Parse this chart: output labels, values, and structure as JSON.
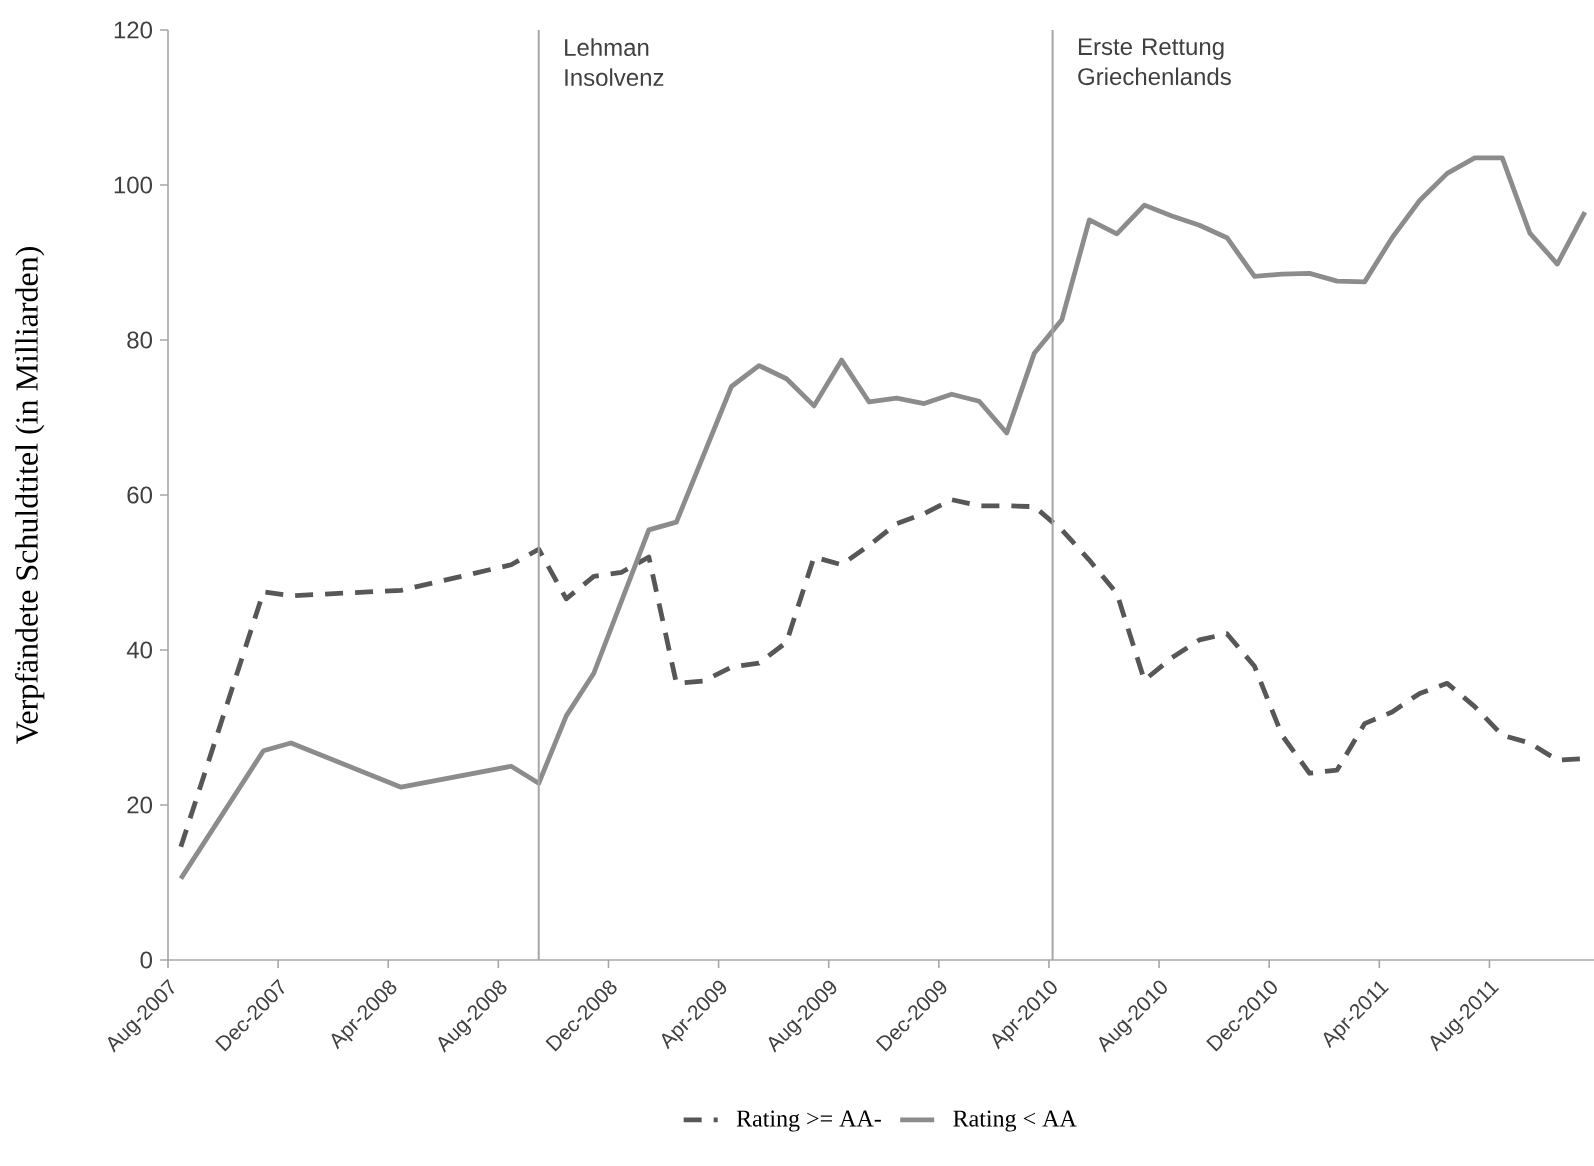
{
  "chart_data": {
    "type": "line",
    "ylabel": "Verpfändete Schuldtitel (in Milliarden)",
    "xlim": [
      "2007-08",
      "2011-11-25"
    ],
    "ylim": [
      0,
      120
    ],
    "yticks": [
      0,
      20,
      40,
      60,
      80,
      100,
      120
    ],
    "xticks": [
      {
        "value": "2007-08",
        "label": "Aug-2007"
      },
      {
        "value": "2007-12",
        "label": "Dec-2007"
      },
      {
        "value": "2008-04",
        "label": "Apr-2008"
      },
      {
        "value": "2008-08",
        "label": "Aug-2008"
      },
      {
        "value": "2008-12",
        "label": "Dec-2008"
      },
      {
        "value": "2009-04",
        "label": "Apr-2009"
      },
      {
        "value": "2009-08",
        "label": "Aug-2009"
      },
      {
        "value": "2009-12",
        "label": "Dec-2009"
      },
      {
        "value": "2010-04",
        "label": "Apr-2010"
      },
      {
        "value": "2010-08",
        "label": "Aug-2010"
      },
      {
        "value": "2010-12",
        "label": "Dec-2010"
      },
      {
        "value": "2011-04",
        "label": "Apr-2011"
      },
      {
        "value": "2011-08",
        "label": "Aug-2011"
      }
    ],
    "legend": "bottom",
    "grid": false,
    "ref_lines": [
      {
        "axis": "x",
        "value": "2008-09-15",
        "label": "Lehman Insolvenz",
        "color": "#a6a6a6"
      },
      {
        "axis": "x",
        "value": "2010-04-05",
        "label": "Erste Rettung Griechenlands",
        "color": "#a6a6a6"
      }
    ],
    "series": [
      {
        "name": "Rating >= AA-",
        "color": "#575757",
        "line_style": "dashed",
        "x": [
          "2007-08-15",
          "2007-11-15",
          "2007-12-15",
          "2008-04-15",
          "2008-08-15",
          "2008-09-15",
          "2008-10-15",
          "2008-11-15",
          "2008-12-15",
          "2009-01-15",
          "2009-02-15",
          "2009-03-15",
          "2009-04-15",
          "2009-05-15",
          "2009-06-15",
          "2009-07-15",
          "2009-08-15",
          "2009-09-15",
          "2009-10-15",
          "2009-11-15",
          "2009-12-15",
          "2010-01-15",
          "2010-02-15",
          "2010-03-15",
          "2010-04-15",
          "2010-05-15",
          "2010-06-15",
          "2010-07-15",
          "2010-08-15",
          "2010-09-15",
          "2010-10-15",
          "2010-11-15",
          "2010-12-15",
          "2011-01-15",
          "2011-02-15",
          "2011-03-15",
          "2011-04-15",
          "2011-05-15",
          "2011-06-15",
          "2011-07-15",
          "2011-08-15",
          "2011-09-15",
          "2011-10-15",
          "2011-11-15"
        ],
        "values": [
          14.6,
          47.5,
          47,
          47.7,
          51,
          53,
          46.6,
          49.5,
          50,
          52,
          35.7,
          36,
          37.8,
          38.3,
          41,
          52,
          51,
          53.5,
          56.3,
          57.6,
          59.4,
          58.6,
          58.6,
          58.5,
          55.5,
          51.6,
          47.3,
          36.1,
          39,
          41.3,
          42.1,
          37.9,
          29,
          24.1,
          24.5,
          30.5,
          32,
          34.4,
          35.7,
          32.7,
          29,
          28,
          25.8,
          26
        ]
      },
      {
        "name": "Rating < AA",
        "color": "#8c8c8c",
        "line_style": "solid",
        "x": [
          "2007-08-15",
          "2007-11-15",
          "2007-12-15",
          "2008-04-15",
          "2008-08-15",
          "2008-09-15",
          "2008-10-15",
          "2008-11-15",
          "2009-01-15",
          "2009-02-15",
          "2009-04-15",
          "2009-05-15",
          "2009-06-15",
          "2009-07-15",
          "2009-08-15",
          "2009-09-15",
          "2009-10-15",
          "2009-11-15",
          "2009-12-15",
          "2010-01-15",
          "2010-02-15",
          "2010-03-15",
          "2010-04-15",
          "2010-05-15",
          "2010-06-15",
          "2010-07-15",
          "2010-08-15",
          "2010-09-15",
          "2010-10-15",
          "2010-11-15",
          "2010-12-15",
          "2011-01-15",
          "2011-02-15",
          "2011-03-15",
          "2011-04-15",
          "2011-05-15",
          "2011-06-15",
          "2011-07-15",
          "2011-08-15",
          "2011-09-15",
          "2011-10-15",
          "2011-11-15"
        ],
        "values": [
          10.5,
          27,
          28,
          22.3,
          25,
          22.8,
          31.5,
          37,
          55.5,
          56.5,
          74,
          76.7,
          75,
          71.5,
          77.4,
          72,
          72.5,
          71.8,
          73,
          72.1,
          68,
          78.3,
          82.6,
          95.5,
          93.7,
          97.4,
          96,
          94.8,
          93.2,
          88.2,
          88.5,
          88.6,
          87.6,
          87.5,
          93.2,
          98,
          101.5,
          103.5,
          103.5,
          93.8,
          89.8,
          96.5
        ]
      }
    ]
  }
}
